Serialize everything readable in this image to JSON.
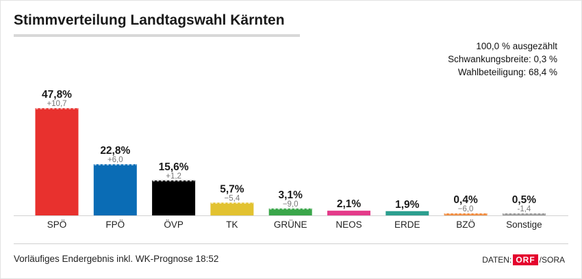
{
  "title": "Stimmverteilung Landtagswahl Kärnten",
  "info": {
    "counted": "100,0 % ausgezählt",
    "margin": "Schwankungsbreite: 0,3 %",
    "turnout": "Wahlbeteiligung: 68,4 %"
  },
  "footer": {
    "note": "Vorläufiges Endergebnis inkl. WK-Prognose 18:52",
    "source_prefix": "DATEN:",
    "source_logo": "ORF",
    "source_suffix": "/SORA"
  },
  "chart_data": {
    "type": "bar",
    "title": "Stimmverteilung Landtagswahl Kärnten",
    "categories": [
      "SPÖ",
      "FPÖ",
      "ÖVP",
      "TK",
      "GRÜNE",
      "NEOS",
      "ERDE",
      "BZÖ",
      "Sonstige"
    ],
    "values": [
      47.8,
      22.8,
      15.6,
      5.7,
      3.1,
      2.1,
      1.9,
      0.4,
      0.5
    ],
    "value_labels": [
      "47,8%",
      "22,8%",
      "15,6%",
      "5,7%",
      "3,1%",
      "2,1%",
      "1,9%",
      "0,4%",
      "0,5%"
    ],
    "changes": [
      10.7,
      6.0,
      1.2,
      -5.4,
      -9.0,
      null,
      null,
      -6.0,
      -1.4
    ],
    "change_labels": [
      "+10,7",
      "+6,0",
      "+1,2",
      "−5,4",
      "−9,0",
      "",
      "",
      "−6,0",
      "-1,4"
    ],
    "colors": [
      "#e8312e",
      "#0a6cb5",
      "#000000",
      "#e2c230",
      "#3aa64a",
      "#e43b8a",
      "#2c9f8f",
      "#f08a3c",
      "#9a9a9a"
    ],
    "ylim": [
      0,
      50
    ],
    "grid": false,
    "legend": "none"
  }
}
